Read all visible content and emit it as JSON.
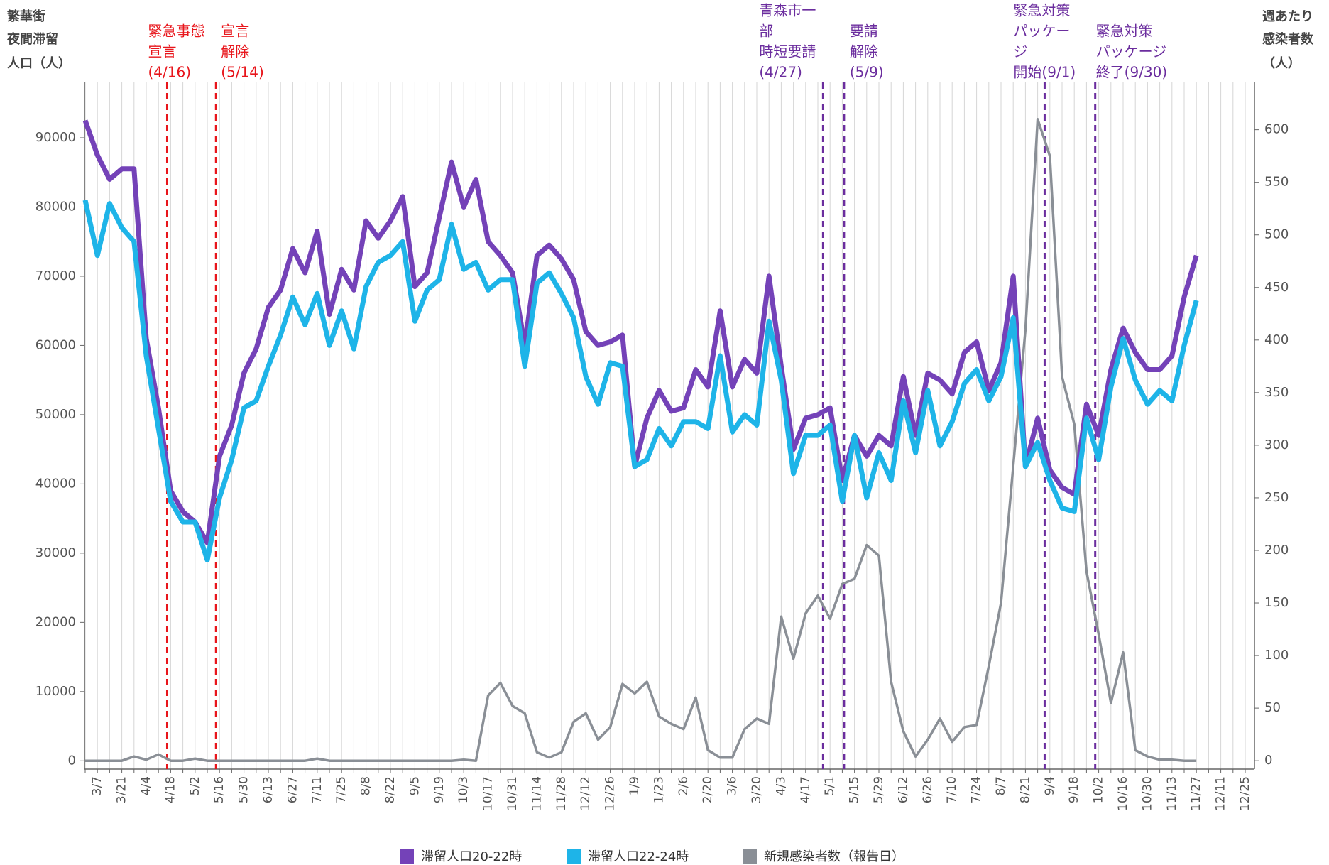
{
  "chart_data": {
    "type": "line",
    "ylabel": [
      "繁華街",
      "夜間滞留",
      "人口（人）"
    ],
    "y2label": [
      "週あたり",
      "感染者数",
      "（人）"
    ],
    "categories": [
      null,
      "3/7",
      null,
      "3/21",
      null,
      "4/4",
      null,
      "4/18",
      null,
      "5/2",
      null,
      "5/16",
      null,
      "5/30",
      null,
      "6/13",
      null,
      "6/27",
      null,
      "7/11",
      null,
      "7/25",
      null,
      "8/8",
      null,
      "8/22",
      null,
      "9/5",
      null,
      "9/19",
      null,
      "10/3",
      null,
      "10/17",
      null,
      "10/31",
      null,
      "11/14",
      null,
      "11/28",
      null,
      "12/12",
      null,
      "12/26",
      null,
      "1/9",
      null,
      "1/23",
      null,
      "2/6",
      null,
      "2/20",
      null,
      "3/6",
      null,
      "3/20",
      null,
      "4/3",
      null,
      "4/17",
      null,
      "5/1",
      null,
      "5/15",
      null,
      "5/29",
      null,
      "6/12",
      null,
      "6/26",
      null,
      "7/10",
      null,
      "7/24",
      null,
      "8/7",
      null,
      "8/21",
      null,
      "9/4",
      null,
      "9/18",
      null,
      "10/2",
      null,
      "10/16",
      null,
      "10/30",
      null,
      "11/13",
      null,
      "11/27",
      null,
      "12/11",
      null,
      "12/25"
    ],
    "series": [
      {
        "name": "滞留人口20-22時",
        "color": "#7442b8",
        "width": 7,
        "values": [
          92500,
          87500,
          84000,
          85500,
          85500,
          61000,
          51000,
          39000,
          36000,
          34500,
          31500,
          44000,
          48500,
          56000,
          59500,
          65500,
          68000,
          74000,
          70500,
          76500,
          64500,
          71000,
          68000,
          78000,
          75500,
          78000,
          81500,
          68500,
          70500,
          78500,
          86500,
          80000,
          84000,
          75000,
          73000,
          70500,
          60000,
          73000,
          74500,
          72500,
          69500,
          62000,
          60000,
          60500,
          61500,
          42500,
          49500,
          53500,
          50500,
          51000,
          56500,
          54000,
          65000,
          54000,
          58000,
          56000,
          70000,
          57000,
          45000,
          49500,
          50000,
          51000,
          40500,
          47000,
          44000,
          47000,
          45500,
          55500,
          47000,
          56000,
          55000,
          53000,
          59000,
          60500,
          53500,
          57500,
          70000,
          42500,
          49500,
          42000,
          39500,
          38500,
          51500,
          47000,
          56500,
          62500,
          59000,
          56500,
          56500,
          58500,
          67000,
          73000,
          null,
          null,
          null,
          null
        ]
      },
      {
        "name": "滞留人口22-24時",
        "color": "#1eb4e8",
        "width": 7,
        "values": [
          81000,
          73000,
          80500,
          77000,
          75000,
          58500,
          48000,
          37500,
          34500,
          34500,
          29000,
          38000,
          43500,
          51000,
          52000,
          57000,
          61500,
          67000,
          63000,
          67500,
          60000,
          65000,
          59500,
          68500,
          72000,
          73000,
          75000,
          63500,
          68000,
          69500,
          77500,
          71000,
          72000,
          68000,
          69500,
          69500,
          57000,
          69000,
          70500,
          67500,
          64000,
          55500,
          51500,
          57500,
          57000,
          42500,
          43500,
          48000,
          45500,
          49000,
          49000,
          48000,
          58500,
          47500,
          50000,
          48500,
          63500,
          55000,
          41500,
          47000,
          47000,
          48500,
          37500,
          47000,
          38000,
          44500,
          40500,
          52000,
          44500,
          53500,
          45500,
          49000,
          54500,
          56500,
          52000,
          55500,
          64000,
          42500,
          46000,
          40500,
          36500,
          36000,
          49500,
          43500,
          54000,
          61000,
          55000,
          51500,
          53500,
          52000,
          60000,
          66500,
          null,
          null,
          null,
          null
        ]
      },
      {
        "name": "新規感染者数（報告日）",
        "color": "#8a8f96",
        "width": 3.5,
        "axis": "y2",
        "values": [
          0,
          0,
          0,
          0,
          4,
          1,
          6,
          0,
          0,
          2,
          0,
          0,
          0,
          0,
          0,
          0,
          0,
          0,
          0,
          2,
          0,
          0,
          0,
          0,
          0,
          0,
          0,
          0,
          0,
          0,
          0,
          1,
          0,
          62,
          74,
          52,
          45,
          8,
          3,
          8,
          37,
          45,
          20,
          32,
          73,
          64,
          75,
          42,
          35,
          30,
          60,
          10,
          3,
          3,
          30,
          40,
          35,
          137,
          97,
          140,
          157,
          135,
          168,
          173,
          205,
          195,
          75,
          28,
          4,
          20,
          40,
          18,
          32,
          34,
          90,
          150,
          280,
          410,
          610,
          575,
          365,
          320,
          180,
          120,
          55,
          103,
          10,
          4,
          1,
          1,
          0,
          0,
          null,
          null,
          null,
          null
        ]
      }
    ],
    "ylim": [
      -1200,
      98000
    ],
    "yticks": [
      0,
      10000,
      20000,
      30000,
      40000,
      50000,
      60000,
      70000,
      80000,
      90000
    ],
    "y2lim": [
      -8,
      645
    ],
    "y2ticks": [
      0,
      50,
      100,
      150,
      200,
      250,
      300,
      350,
      400,
      450,
      500,
      550,
      600
    ],
    "xgrid": true,
    "legend": "bottom",
    "annotations": [
      {
        "lines": [
          "緊急事態",
          "宣言",
          "(4/16)"
        ],
        "color": "#e8151b"
      },
      {
        "lines": [
          "宣言",
          "解除",
          "(5/14)"
        ],
        "color": "#e8151b"
      },
      {
        "lines": [
          "青森市一",
          "部",
          "時短要請",
          "(4/27)"
        ],
        "color": "#6b2d9e"
      },
      {
        "lines": [
          "要請",
          "解除",
          "(5/9)"
        ],
        "color": "#6b2d9e"
      },
      {
        "lines": [
          "緊急対策",
          "パッケー",
          "ジ",
          "開始(9/1)"
        ],
        "color": "#6b2d9e"
      },
      {
        "lines": [
          "緊急対策",
          "パッケージ",
          "終了(9/30)"
        ],
        "color": "#6b2d9e"
      }
    ]
  }
}
